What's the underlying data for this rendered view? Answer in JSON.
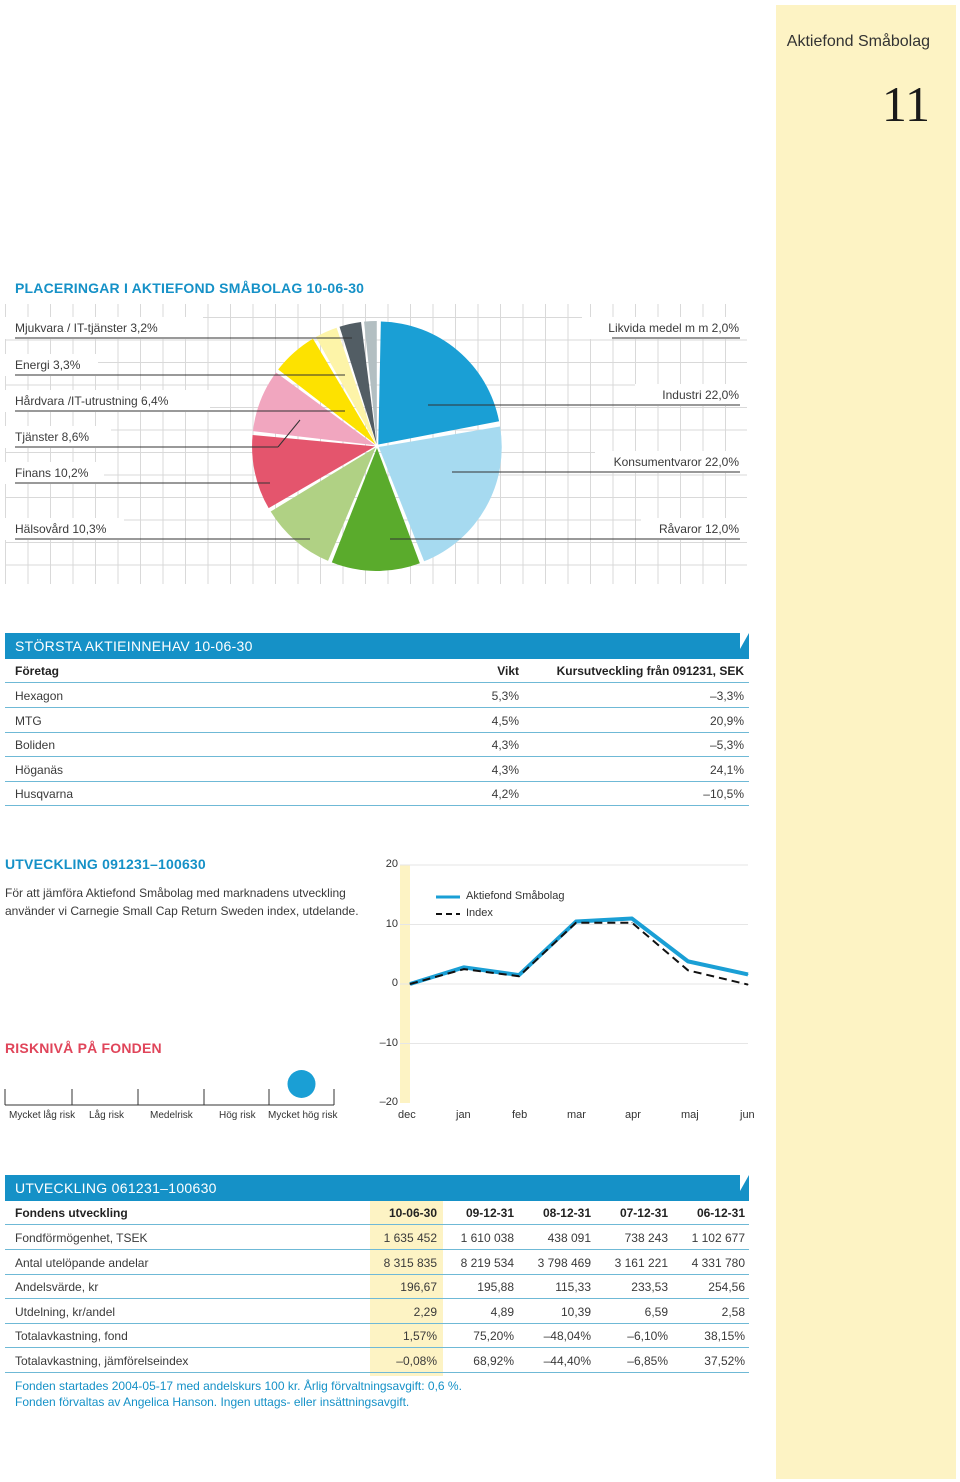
{
  "sidebar": {
    "fund_name": "Aktiefond Småbolag",
    "page_number": "11"
  },
  "allocation": {
    "title": "PLACERINGAR I AKTIEFOND SMÅBOLAG 10-06-30",
    "left_labels": [
      "Mjukvara / IT-tjänster 3,2%",
      "Energi 3,3%",
      "Hårdvara /IT-utrustning 6,4%",
      "Tjänster 8,6%",
      "Finans 10,2%",
      "Hälsovård 10,3%"
    ],
    "right_labels": [
      "Likvida medel m m 2,0%",
      "Industri 22,0%",
      "Konsumentvaror 22,0%",
      "Råvaror 12,0%"
    ],
    "chart_data": {
      "type": "pie",
      "title": "PLACERINGAR I AKTIEFOND SMÅBOLAG 10-06-30",
      "slices": [
        {
          "label": "Industri",
          "value": 22.0,
          "color": "#1a9fd5"
        },
        {
          "label": "Konsumentvaror",
          "value": 22.0,
          "color": "#a6daf0"
        },
        {
          "label": "Råvaror",
          "value": 12.0,
          "color": "#5aab2c"
        },
        {
          "label": "Hälsovård",
          "value": 10.3,
          "color": "#b0d184"
        },
        {
          "label": "Finans",
          "value": 10.2,
          "color": "#e4556d"
        },
        {
          "label": "Tjänster",
          "value": 8.6,
          "color": "#f1a6bf"
        },
        {
          "label": "Hårdvara /IT-utrustning",
          "value": 6.4,
          "color": "#fde200"
        },
        {
          "label": "Energi",
          "value": 3.3,
          "color": "#fdf4a8"
        },
        {
          "label": "Mjukvara / IT-tjänster",
          "value": 3.2,
          "color": "#525d64"
        },
        {
          "label": "Likvida medel m m",
          "value": 2.0,
          "color": "#b3bfc2"
        }
      ]
    }
  },
  "holdings": {
    "title": "STÖRSTA AKTIEINNEHAV 10-06-30",
    "headers": [
      "Företag",
      "Vikt",
      "Kursutveckling från 091231, SEK"
    ],
    "rows": [
      [
        "Hexagon",
        "5,3%",
        "–3,3%"
      ],
      [
        "MTG",
        "4,5%",
        "20,9%"
      ],
      [
        "Boliden",
        "4,3%",
        "–5,3%"
      ],
      [
        "Höganäs",
        "4,3%",
        "24,1%"
      ],
      [
        "Husqvarna",
        "4,2%",
        "–10,5%"
      ]
    ]
  },
  "development": {
    "title": "UTVECKLING 091231–100630",
    "text_line1": "För att jämföra Aktiefond Småbolag med marknadens utveckling",
    "text_line2": "använder vi Carnegie Small Cap Return Sweden index, utdelande.",
    "legend_fund": "Aktiefond Småbolag",
    "legend_index": "Index",
    "y_ticks": [
      "20",
      "10",
      "0",
      "–10",
      "–20"
    ],
    "months": [
      "dec",
      "jan",
      "feb",
      "mar",
      "apr",
      "maj",
      "jun"
    ],
    "chart_data": {
      "type": "line",
      "x": [
        "dec",
        "jan",
        "feb",
        "mar",
        "apr",
        "maj",
        "jun"
      ],
      "series": [
        {
          "name": "Aktiefond Småbolag",
          "values": [
            0,
            2.8,
            1.5,
            10.5,
            11.0,
            3.8,
            1.6
          ],
          "color": "#1a9fd5"
        },
        {
          "name": "Index",
          "values": [
            0,
            2.5,
            1.3,
            10.3,
            10.3,
            2.3,
            -0.1
          ],
          "color": "#111111"
        }
      ],
      "ylim": [
        -20,
        20
      ],
      "title": "UTVECKLING 091231–100630"
    }
  },
  "risk": {
    "title": "RISKNIVÅ PÅ FONDEN",
    "levels": [
      "Mycket låg risk",
      "Låg risk",
      "Medelrisk",
      "Hög risk",
      "Mycket hög risk"
    ],
    "selected_index": 4
  },
  "fund_dev": {
    "title": "UTVECKLING 061231–100630",
    "headers": [
      "Fondens utveckling",
      "10-06-30",
      "09-12-31",
      "08-12-31",
      "07-12-31",
      "06-12-31"
    ],
    "rows": [
      [
        "Fondförmögenhet, TSEK",
        "1 635 452",
        "1 610 038",
        "438 091",
        "738 243",
        "1 102 677"
      ],
      [
        "Antal utelöpande andelar",
        "8 315 835",
        "8 219 534",
        "3 798 469",
        "3 161 221",
        "4 331 780"
      ],
      [
        "Andelsvärde, kr",
        "196,67",
        "195,88",
        "115,33",
        "233,53",
        "254,56"
      ],
      [
        "Utdelning, kr/andel",
        "2,29",
        "4,89",
        "10,39",
        "6,59",
        "2,58"
      ],
      [
        "Totalavkastning, fond",
        "1,57%",
        "75,20%",
        "–48,04%",
        "–6,10%",
        "38,15%"
      ],
      [
        "Totalavkastning, jämförelseindex",
        "–0,08%",
        "68,92%",
        "–44,40%",
        "–6,85%",
        "37,52%"
      ]
    ],
    "footnote1": "Fonden startades 2004-05-17 med andelskurs 100 kr. Årlig förvaltningsavgift: 0,6 %.",
    "footnote2": "Fonden förvaltas av Angelica Hanson. Ingen uttags- eller insättningsavgift."
  }
}
